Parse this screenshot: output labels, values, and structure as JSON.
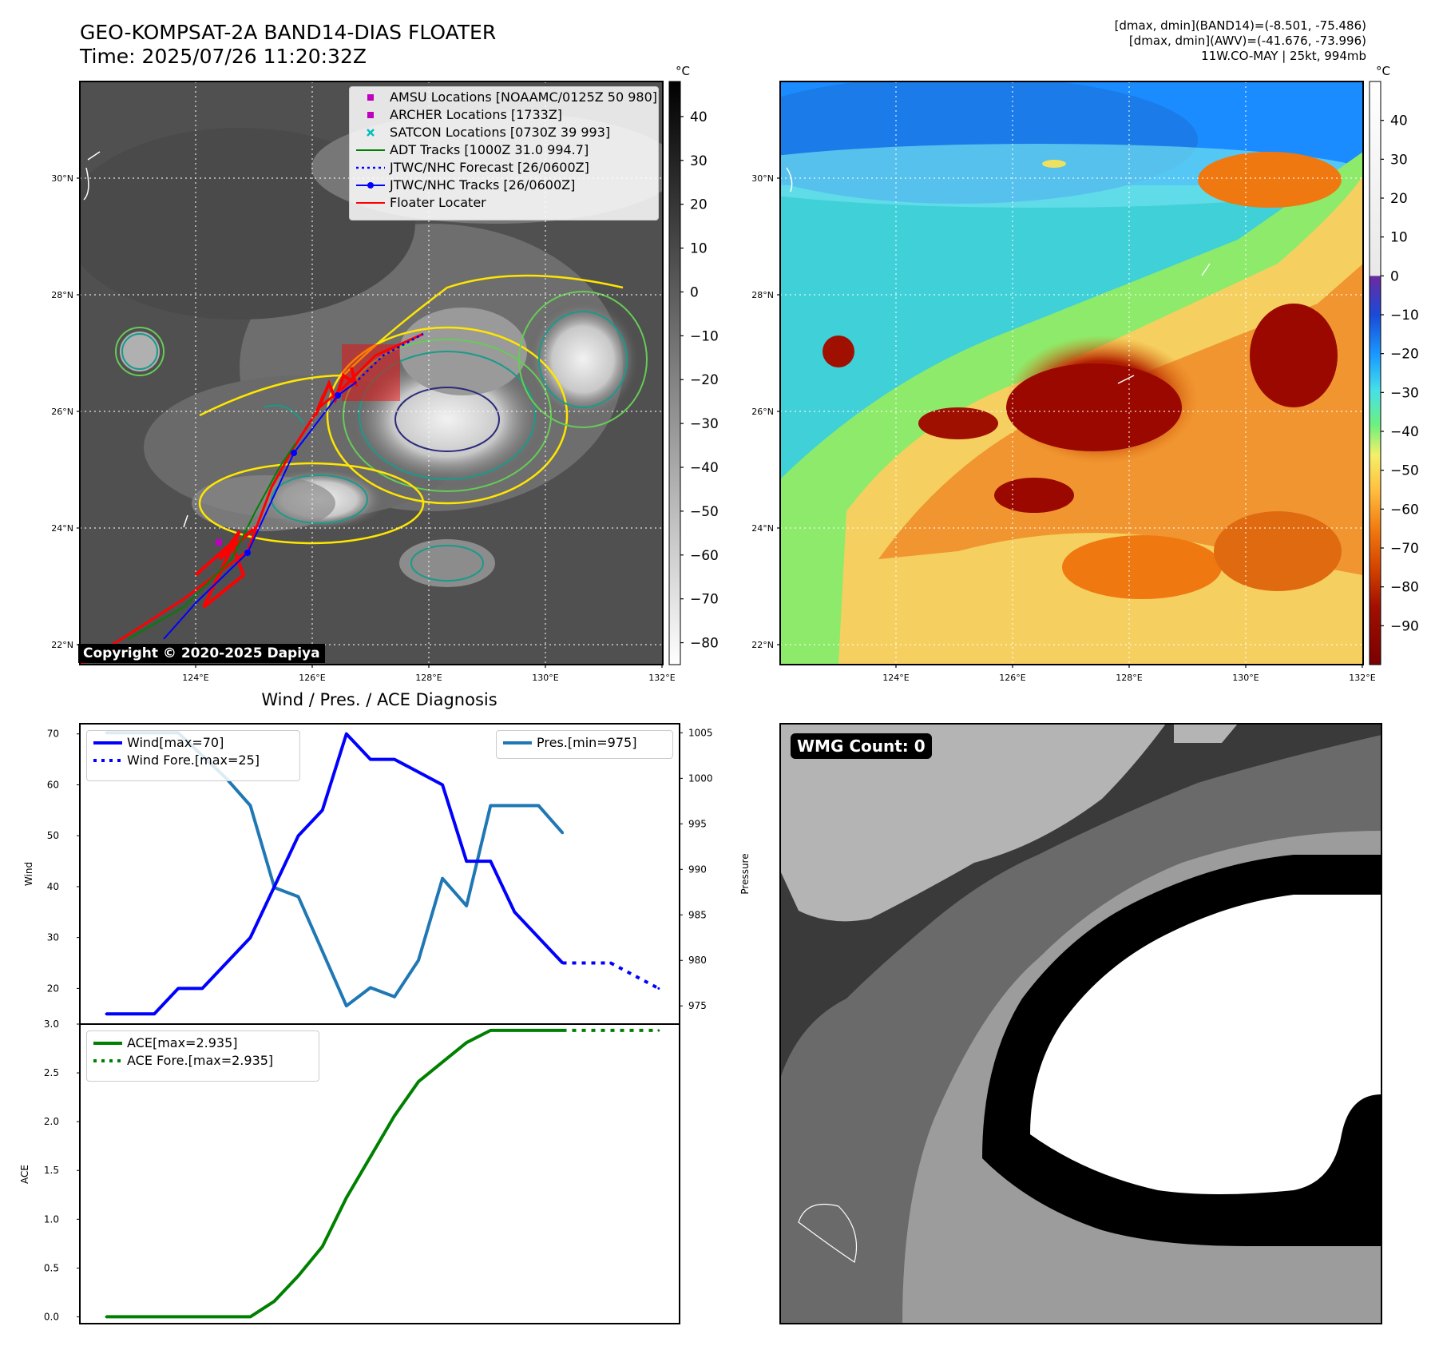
{
  "title": {
    "line1": "GEO-KOMPSAT-2A BAND14-DIAS FLOATER",
    "line2": "Time: 2025/07/26 11:20:32Z"
  },
  "meta": {
    "line1": "[dmax, dmin](BAND14)=(-8.501, -75.486)",
    "line2": "[dmax, dmin](AWV)=(-41.676, -73.996)",
    "line3": "11W.CO-MAY | 25kt, 994mb"
  },
  "copyright": "Copyright © 2020-2025 Dapiya",
  "wmg_label": "WMG Count: 0",
  "colorbar_unit": "°C",
  "map_axes": {
    "lat_ticks": [
      "22°N",
      "24°N",
      "26°N",
      "28°N",
      "30°N"
    ],
    "lon_ticks": [
      "124°E",
      "126°E",
      "128°E",
      "130°E",
      "132°E"
    ]
  },
  "colorbar_ir": {
    "ticks": [
      "40",
      "30",
      "20",
      "10",
      "0",
      "−10",
      "−20",
      "−30",
      "−40",
      "−50",
      "−60",
      "−70",
      "−80"
    ],
    "range": [
      -85,
      48
    ]
  },
  "colorbar_wv": {
    "ticks": [
      "40",
      "30",
      "20",
      "10",
      "0",
      "−10",
      "−20",
      "−30",
      "−40",
      "−50",
      "−60",
      "−70",
      "−80",
      "−90"
    ],
    "range": [
      -100,
      50
    ]
  },
  "map_legend": [
    {
      "label": "AMSU Locations [NOAAMC/0125Z 50 980]",
      "symbol": "square",
      "color": "#bf00bf"
    },
    {
      "label": "ARCHER Locations [1733Z]",
      "symbol": "square",
      "color": "#bf00bf"
    },
    {
      "label": "SATCON Locations [0730Z 39 993]",
      "symbol": "x",
      "color": "#00bfbf"
    },
    {
      "label": "ADT Tracks [1000Z 31.0 994.7]",
      "symbol": "line",
      "color": "#008000"
    },
    {
      "label": "JTWC/NHC Forecast [26/0600Z]",
      "symbol": "dotted",
      "color": "#0000ff"
    },
    {
      "label": "JTWC/NHC Tracks [26/0600Z]",
      "symbol": "line-dot",
      "color": "#0000ff"
    },
    {
      "label": "Floater Locater",
      "symbol": "line",
      "color": "#ff0000"
    }
  ],
  "colors": {
    "wind": "#0000ff",
    "pressure": "#1f77b4",
    "ace": "#008000",
    "floater": "#ff0000"
  },
  "chart_data": [
    {
      "type": "line",
      "title": "Wind / Pres. / ACE Diagnosis",
      "ylabel": "Wind",
      "ylabel_right": "Pressure",
      "ylim": [
        13,
        72
      ],
      "ylim_right": [
        973,
        1006
      ],
      "yticks": [
        20,
        30,
        40,
        50,
        60,
        70
      ],
      "yticks_right": [
        975,
        980,
        985,
        990,
        995,
        1000,
        1005
      ],
      "series": [
        {
          "name": "Wind[max=70]",
          "axis": "left",
          "style": "solid",
          "x": [
            0,
            2,
            3,
            4,
            6,
            8,
            9,
            10,
            11,
            12,
            14,
            15,
            16,
            17,
            19
          ],
          "values": [
            15,
            15,
            20,
            20,
            30,
            50,
            55,
            70,
            65,
            65,
            60,
            45,
            45,
            35,
            25
          ]
        },
        {
          "name": "Wind Fore.[max=25]",
          "axis": "left",
          "style": "dotted",
          "x": [
            19,
            21,
            23
          ],
          "values": [
            25,
            25,
            20
          ]
        },
        {
          "name": "Pres.[min=975]",
          "axis": "right",
          "style": "solid",
          "x": [
            0,
            3,
            5,
            6,
            7,
            8,
            9,
            10,
            11,
            12,
            13,
            14,
            15,
            16,
            17,
            18,
            19
          ],
          "values": [
            1005,
            1005,
            1000,
            997,
            988,
            987,
            981,
            975,
            977,
            976,
            980,
            989,
            986,
            997,
            997,
            997,
            994
          ]
        }
      ]
    },
    {
      "type": "line",
      "ylabel": "ACE",
      "ylim": [
        -0.07,
        3.0
      ],
      "yticks": [
        0.0,
        0.5,
        1.0,
        1.5,
        2.0,
        2.5,
        3.0
      ],
      "series": [
        {
          "name": "ACE[max=2.935]",
          "style": "solid",
          "x": [
            0,
            6,
            7,
            8,
            9,
            10,
            11,
            12,
            13,
            14,
            15,
            16,
            19
          ],
          "values": [
            0,
            0,
            0.16,
            0.42,
            0.72,
            1.22,
            1.64,
            2.06,
            2.41,
            2.61,
            2.81,
            2.935,
            2.935
          ]
        },
        {
          "name": "ACE Fore.[max=2.935]",
          "style": "dotted",
          "x": [
            19,
            23
          ],
          "values": [
            2.935,
            2.935
          ]
        }
      ]
    }
  ]
}
